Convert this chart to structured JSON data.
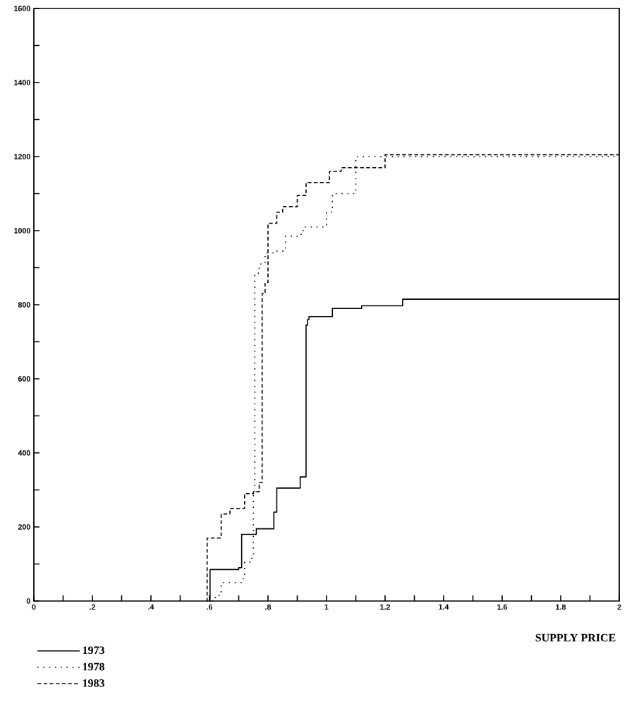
{
  "chart_data": {
    "type": "step",
    "xlabel": "SUPPLY PRICE",
    "xlim": [
      0,
      2
    ],
    "ylim": [
      0,
      1600
    ],
    "xticks": [
      0,
      {
        "value": 0.1,
        "label": null
      },
      {
        "value": 0.2,
        "label": ".2"
      },
      {
        "value": 0.3,
        "label": null
      },
      {
        "value": 0.4,
        "label": ".4"
      },
      {
        "value": 0.5,
        "label": null
      },
      {
        "value": 0.6,
        "label": ".6"
      },
      {
        "value": 0.7,
        "label": null
      },
      {
        "value": 0.8,
        "label": ".8"
      },
      {
        "value": 0.9,
        "label": null
      },
      1,
      {
        "value": 1.1,
        "label": null
      },
      1.2,
      {
        "value": 1.3,
        "label": null
      },
      1.4,
      {
        "value": 1.5,
        "label": null
      },
      1.6,
      {
        "value": 1.7,
        "label": null
      },
      1.8,
      {
        "value": 1.9,
        "label": null
      },
      2
    ],
    "yticks": [
      0,
      {
        "value": 100,
        "label": null
      },
      200,
      {
        "value": 300,
        "label": null
      },
      400,
      {
        "value": 500,
        "label": null
      },
      600,
      {
        "value": 700,
        "label": null
      },
      800,
      {
        "value": 900,
        "label": null
      },
      1000,
      {
        "value": 1100,
        "label": null
      },
      1200,
      {
        "value": 1300,
        "label": null
      },
      1400,
      {
        "value": 1500,
        "label": null
      },
      1600
    ],
    "legend": "bottom left",
    "grid": false,
    "marker": "none",
    "series": [
      {
        "name": "1973",
        "color": "#000000",
        "line_style": "solid",
        "x": [
          0.6,
          0.602,
          0.7,
          0.71,
          0.76,
          0.82,
          0.83,
          0.91,
          0.93,
          0.935,
          0.94,
          1.02,
          1.12,
          1.26,
          2.0
        ],
        "values": [
          0,
          85,
          90,
          180,
          195,
          240,
          305,
          335,
          745,
          760,
          768,
          790,
          797,
          815,
          815
        ]
      },
      {
        "name": "1978",
        "color": "#000000",
        "line_style": "dotted",
        "x": [
          0.61,
          0.62,
          0.64,
          0.71,
          0.72,
          0.745,
          0.75,
          0.755,
          0.77,
          0.79,
          0.82,
          0.86,
          0.9,
          0.92,
          1.0,
          1.02,
          1.1,
          2.0
        ],
        "values": [
          0,
          15,
          50,
          60,
          105,
          120,
          290,
          885,
          910,
          940,
          945,
          985,
          990,
          1010,
          1050,
          1100,
          1200,
          1200
        ]
      },
      {
        "name": "1983",
        "color": "#000000",
        "line_style": "dashed",
        "x": [
          0.59,
          0.592,
          0.64,
          0.67,
          0.72,
          0.75,
          0.77,
          0.78,
          0.79,
          0.8,
          0.83,
          0.85,
          0.9,
          0.93,
          1.01,
          1.05,
          1.2,
          2.0
        ],
        "values": [
          0,
          170,
          235,
          250,
          290,
          295,
          320,
          830,
          860,
          1020,
          1050,
          1065,
          1095,
          1130,
          1160,
          1170,
          1205,
          1205
        ]
      }
    ]
  }
}
